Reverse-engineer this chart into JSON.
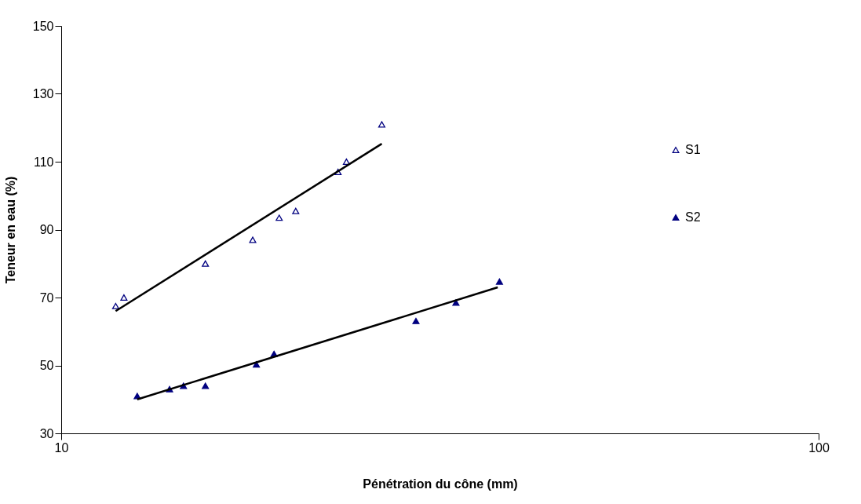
{
  "chart_data": {
    "type": "scatter",
    "xlabel": "Pénétration du cône (mm)",
    "ylabel": "Teneur en eau (%)",
    "log": "x",
    "xlim": [
      10,
      100
    ],
    "xticks": [
      10,
      100
    ],
    "ylim": [
      30,
      150
    ],
    "yticks": [
      30,
      50,
      70,
      90,
      110,
      130,
      150
    ],
    "grid": false,
    "legend": "top right",
    "marker": "triangle",
    "series": [
      {
        "name": "S1",
        "color": "#000080",
        "x": [
          11.8,
          12.1,
          15.5,
          17.9,
          19.4,
          20.4,
          23.2,
          23.8,
          26.5
        ],
        "values": [
          67.5,
          70,
          80,
          87,
          93.5,
          95.5,
          107,
          110,
          121
        ]
      },
      {
        "name": "S2",
        "color": "#000080",
        "x": [
          12.6,
          13.9,
          14.5,
          15.5,
          18.1,
          19.1,
          29.4,
          33.2,
          37.9
        ],
        "values": [
          41,
          43,
          44,
          44,
          50.3,
          53.4,
          63.1,
          68.5,
          74.7
        ]
      },
      {
        "type": "line",
        "color": "#000000",
        "marker": "none",
        "line_style": "solid",
        "x": [
          11.8,
          26.5
        ],
        "values": [
          66,
          115.3
        ]
      },
      {
        "type": "line",
        "color": "#000000",
        "marker": "none",
        "line_style": "solid",
        "x": [
          12.6,
          37.7
        ],
        "values": [
          40,
          73
        ]
      }
    ]
  }
}
